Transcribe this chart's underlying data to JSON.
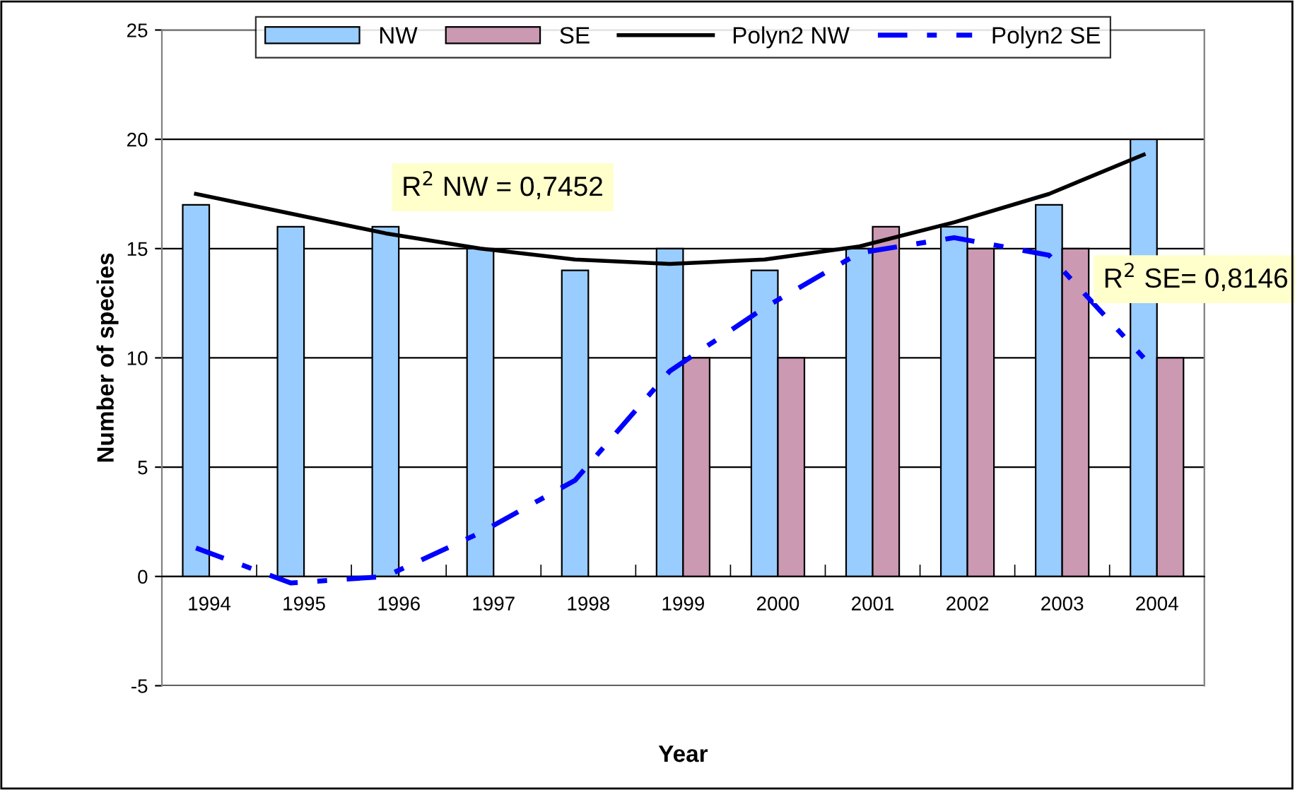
{
  "chart_data": {
    "type": "bar",
    "xlabel": "Year",
    "ylabel": "Number of species",
    "categories": [
      "1994",
      "1995",
      "1996",
      "1997",
      "1998",
      "1999",
      "2000",
      "2001",
      "2002",
      "2003",
      "2004"
    ],
    "series": [
      {
        "name": "NW",
        "color": "#99ccff",
        "values": [
          17,
          16,
          16,
          15,
          14,
          15,
          14,
          15,
          16,
          17,
          20
        ]
      },
      {
        "name": "SE",
        "color": "#cc99b3",
        "values": [
          null,
          null,
          null,
          null,
          null,
          10,
          10,
          16,
          15,
          15,
          10
        ]
      },
      {
        "name": "Polyn2 NW",
        "type": "line",
        "color": "#000000",
        "line_style": "solid",
        "values": [
          17.5,
          16.6,
          15.7,
          15.0,
          14.5,
          14.3,
          14.5,
          15.1,
          16.2,
          17.5,
          19.3
        ]
      },
      {
        "name": "Polyn2 SE",
        "type": "line",
        "color": "#0000ff",
        "line_style": "dashed",
        "values": [
          1.3,
          -0.3,
          0.0,
          2.0,
          4.4,
          9.4,
          12.3,
          14.8,
          15.5,
          14.7,
          10.0
        ]
      }
    ],
    "ylim": [
      -5,
      25
    ],
    "yticks": [
      -5,
      0,
      5,
      10,
      15,
      20,
      25
    ],
    "grid": "y",
    "legend": "top",
    "annotations": [
      "R$^{2}$ NW = 0,7452",
      "R$^{2}$ SE= 0,8146"
    ]
  }
}
